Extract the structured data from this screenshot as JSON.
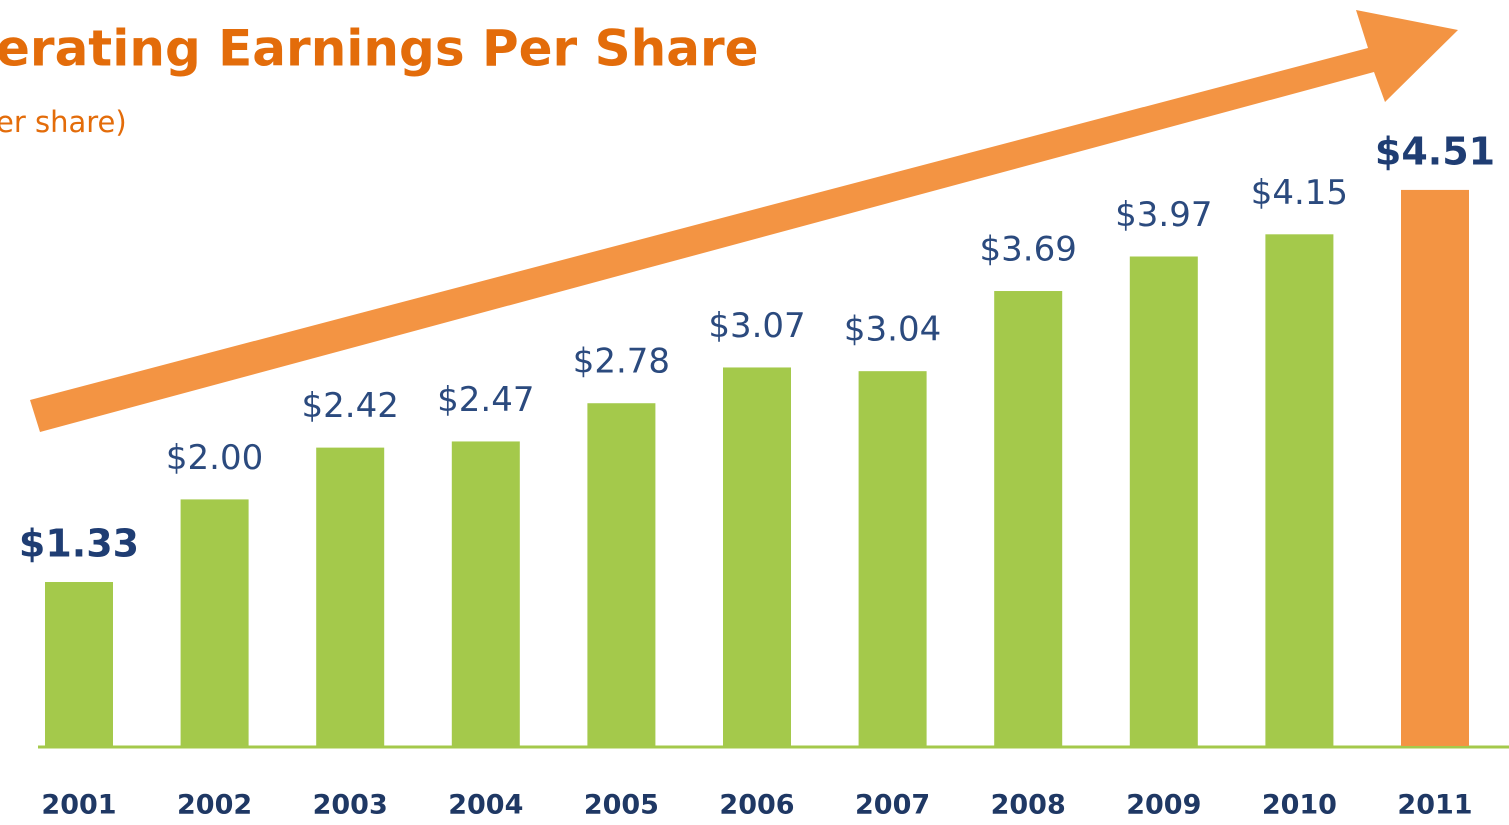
{
  "chart_data": {
    "type": "bar",
    "title": "erating Earnings Per Share",
    "subtitle": "er share)",
    "categories": [
      "2001",
      "2002",
      "2003",
      "2004",
      "2005",
      "2006",
      "2007",
      "2008",
      "2009",
      "2010",
      "2011"
    ],
    "values": [
      1.33,
      2.0,
      2.42,
      2.47,
      2.78,
      3.07,
      3.04,
      3.69,
      3.97,
      4.15,
      4.51
    ],
    "value_labels": [
      "$1.33",
      "$2.00",
      "$2.42",
      "$2.47",
      "$2.78",
      "$3.07",
      "$3.04",
      "$3.69",
      "$3.97",
      "$4.15",
      "$4.51"
    ],
    "colors": [
      "#a4c94b",
      "#a4c94b",
      "#a4c94b",
      "#a4c94b",
      "#a4c94b",
      "#a4c94b",
      "#a4c94b",
      "#a4c94b",
      "#a4c94b",
      "#a4c94b",
      "#f39443"
    ],
    "ylim": [
      0,
      5
    ]
  }
}
